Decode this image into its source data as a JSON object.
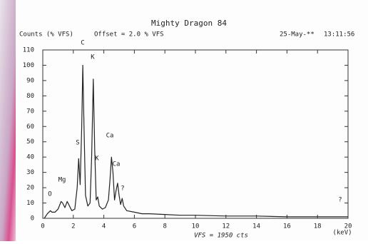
{
  "chart_data": {
    "type": "line",
    "title": "Mighty Dragon 84",
    "y_label": "Counts (% VFS)",
    "offset_label": "Offset = 2.0 % VFS",
    "date": "25-May-**",
    "time": "13:11:56",
    "x_label": "VFS = 1950 cts",
    "x_unit": "(keV)",
    "x": [
      0.1,
      0.3,
      0.5,
      0.6,
      0.8,
      1.0,
      1.2,
      1.3,
      1.45,
      1.6,
      1.7,
      1.9,
      2.1,
      2.25,
      2.35,
      2.45,
      2.55,
      2.62,
      2.7,
      2.8,
      2.95,
      3.1,
      3.2,
      3.31,
      3.4,
      3.5,
      3.6,
      3.7,
      3.9,
      4.1,
      4.3,
      4.4,
      4.5,
      4.6,
      4.7,
      4.8,
      4.9,
      5.0,
      5.1,
      5.2,
      5.3,
      5.5,
      6,
      6.5,
      7,
      8,
      9,
      10,
      12,
      14,
      16,
      18,
      19.5,
      20
    ],
    "series": [
      {
        "color": "#222222",
        "values": [
          0,
          3,
          5,
          4,
          4,
          6,
          11,
          10,
          7,
          11,
          9,
          5,
          6,
          20,
          39,
          22,
          60,
          100,
          60,
          15,
          8,
          10,
          40,
          91,
          45,
          12,
          14,
          8,
          6,
          7,
          12,
          25,
          40,
          30,
          12,
          18,
          23,
          15,
          9,
          13,
          8,
          5,
          4,
          3,
          3,
          2.5,
          2,
          2,
          1.5,
          1.5,
          1,
          1,
          1,
          1
        ]
      }
    ],
    "annotations": [
      "O",
      "Mg",
      "S",
      "C",
      "K",
      "K",
      "Ca",
      "Ca",
      "?",
      "?"
    ],
    "xlim": [
      0,
      20
    ],
    "ylim": [
      0,
      110
    ],
    "xticks": [
      0,
      2,
      4,
      6,
      8,
      10,
      12,
      14,
      16,
      18,
      20
    ],
    "yticks": [
      0,
      10,
      20,
      30,
      40,
      50,
      60,
      70,
      80,
      90,
      100,
      110
    ]
  }
}
